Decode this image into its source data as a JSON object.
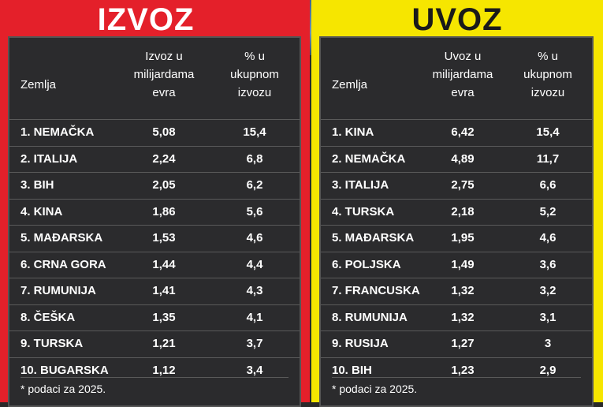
{
  "chart_data": [
    {
      "type": "table",
      "title": "IZVOZ",
      "columns": [
        "Zemlja",
        "Izvoz u\nmilijardama\nevra",
        "% u\nukupnom\nizvozu"
      ],
      "rows": [
        [
          "1. NEMAČKA",
          "5,08",
          "15,4"
        ],
        [
          "2. ITALIJA",
          "2,24",
          "6,8"
        ],
        [
          "3. BIH",
          "2,05",
          "6,2"
        ],
        [
          "4. KINA",
          "1,86",
          "5,6"
        ],
        [
          "5. MAĐARSKA",
          "1,53",
          "4,6"
        ],
        [
          "6. CRNA GORA",
          "1,44",
          "4,4"
        ],
        [
          "7. RUMUNIJA",
          "1,41",
          "4,3"
        ],
        [
          "8. ČEŠKA",
          "1,35",
          "4,1"
        ],
        [
          "9. TURSKA",
          "1,21",
          "3,7"
        ],
        [
          "10. BUGARSKA",
          "1,12",
          "3,4"
        ]
      ],
      "note": "* podaci za 2025."
    },
    {
      "type": "table",
      "title": "UVOZ",
      "columns": [
        "Zemlja",
        "Uvoz u\nmilijardama\nevra",
        "% u\nukupnom\nizvozu"
      ],
      "rows": [
        [
          "1. KINA",
          "6,42",
          "15,4"
        ],
        [
          "2. NEMAČKA",
          "4,89",
          "11,7"
        ],
        [
          "3. ITALIJA",
          "2,75",
          "6,6"
        ],
        [
          "4. TURSKA",
          "2,18",
          "5,2"
        ],
        [
          "5. MAĐARSKA",
          "1,95",
          "4,6"
        ],
        [
          "6. POLJSKA",
          "1,49",
          "3,6"
        ],
        [
          "7. FRANCUSKA",
          "1,32",
          "3,2"
        ],
        [
          "8. RUMUNIJA",
          "1,32",
          "3,1"
        ],
        [
          "9. RUSIJA",
          "1,27",
          "3"
        ],
        [
          "10. BIH",
          "1,23",
          "2,9"
        ]
      ],
      "note": "* podaci za 2025."
    }
  ],
  "colors": {
    "izvoz_bg": "#e4202a",
    "uvoz_bg": "#f6e600",
    "table_bg": "#2b2b2d"
  }
}
